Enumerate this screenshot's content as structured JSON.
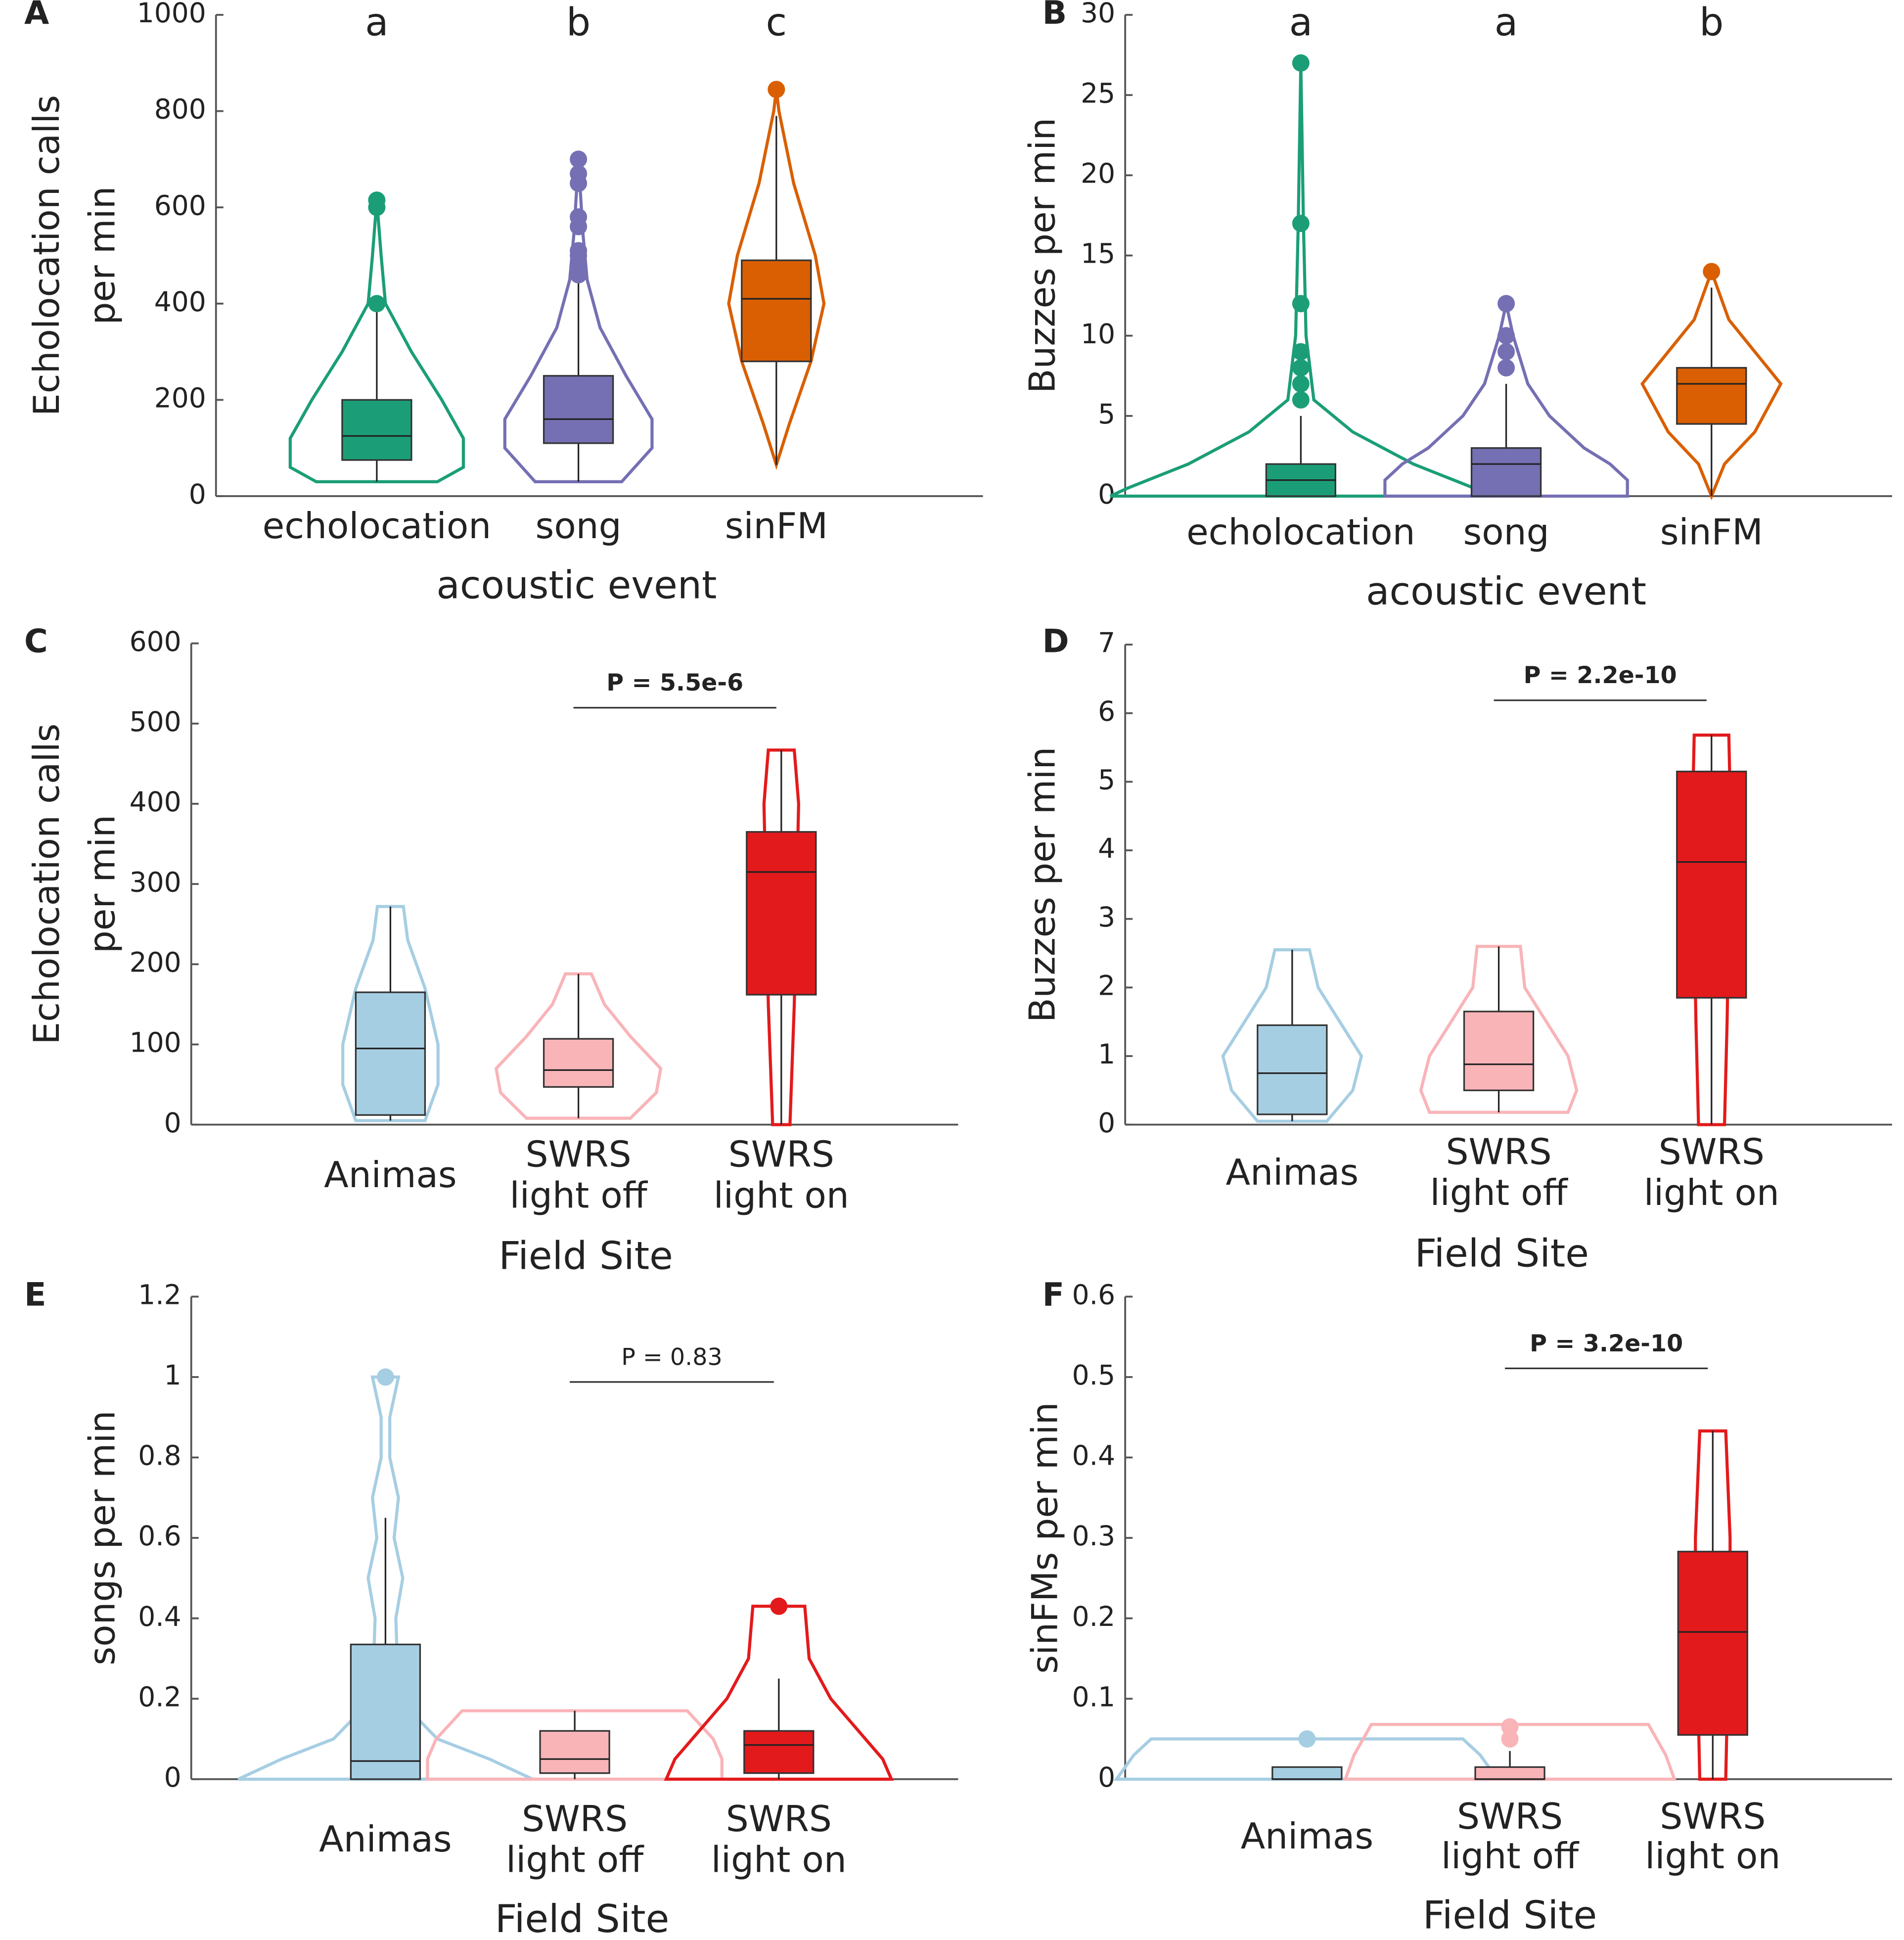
{
  "chart_data": [
    {
      "type": "violin",
      "panel": "A",
      "ylabel": [
        "Echolocation calls",
        "per min"
      ],
      "xlabel": "acoustic event",
      "ylim": [
        0,
        1000
      ],
      "yticks": [
        0,
        200,
        400,
        600,
        800,
        1000
      ],
      "letters": [
        "a",
        "b",
        "c"
      ],
      "groups": [
        {
          "label": [
            "echolocation"
          ],
          "color": "#1b9e77",
          "fill": "#1b9e77",
          "whisker_low": 30,
          "q1": 75,
          "median": 125,
          "q3": 200,
          "whisker_high": 395,
          "outliers": [
            400,
            600,
            615
          ],
          "violin": {
            "y": [
              30,
              60,
              120,
              200,
              300,
              400,
              500,
              615
            ],
            "density": [
              0.7,
              1.0,
              1.0,
              0.75,
              0.4,
              0.1,
              0.05,
              0
            ]
          }
        },
        {
          "label": [
            "song"
          ],
          "color": "#7570b3",
          "fill": "#7570b3",
          "whisker_low": 30,
          "q1": 110,
          "median": 160,
          "q3": 250,
          "whisker_high": 455,
          "outliers": [
            460,
            480,
            500,
            510,
            560,
            580,
            650,
            670,
            700
          ],
          "violin": {
            "y": [
              30,
              100,
              160,
              250,
              350,
              450,
              550,
              700
            ],
            "density": [
              0.5,
              0.85,
              0.85,
              0.55,
              0.25,
              0.1,
              0.05,
              0
            ]
          }
        },
        {
          "label": [
            "sinFM"
          ],
          "color": "#d95f02",
          "fill": "#d95f02",
          "whisker_low": 65,
          "q1": 280,
          "median": 410,
          "q3": 490,
          "whisker_high": 790,
          "outliers": [
            845
          ],
          "violin": {
            "y": [
              65,
              150,
              280,
              400,
              500,
              650,
              800,
              845
            ],
            "density": [
              0,
              0.15,
              0.4,
              0.55,
              0.45,
              0.2,
              0.03,
              0
            ]
          }
        }
      ]
    },
    {
      "type": "violin",
      "panel": "B",
      "ylabel": [
        "Buzzes per min"
      ],
      "xlabel": "acoustic event",
      "ylim": [
        0,
        30
      ],
      "yticks": [
        0,
        5,
        10,
        15,
        20,
        25,
        30
      ],
      "letters": [
        "a",
        "a",
        "b"
      ],
      "groups": [
        {
          "label": [
            "echolocation"
          ],
          "color": "#1b9e77",
          "fill": "#1b9e77",
          "whisker_low": 0,
          "q1": 0,
          "median": 1,
          "q3": 2,
          "whisker_high": 5,
          "outliers": [
            6,
            7,
            8,
            9,
            12,
            17,
            27
          ],
          "violin": {
            "y": [
              0,
              0.5,
              2,
              4,
              6,
              10,
              17,
              27
            ],
            "density": [
              2.2,
              2.0,
              1.3,
              0.6,
              0.15,
              0.06,
              0.03,
              0
            ]
          }
        },
        {
          "label": [
            "song"
          ],
          "color": "#7570b3",
          "fill": "#7570b3",
          "whisker_low": 0,
          "q1": 0,
          "median": 2,
          "q3": 3,
          "whisker_high": 7,
          "outliers": [
            8,
            9,
            10,
            12
          ],
          "violin": {
            "y": [
              0,
              1,
              2,
              3,
              5,
              7,
              10,
              12
            ],
            "density": [
              1.4,
              1.4,
              1.2,
              0.9,
              0.5,
              0.25,
              0.08,
              0
            ]
          }
        },
        {
          "label": [
            "sinFM"
          ],
          "color": "#d95f02",
          "fill": "#d95f02",
          "whisker_low": 0,
          "q1": 4.5,
          "median": 7,
          "q3": 8,
          "whisker_high": 13,
          "outliers": [
            14
          ],
          "violin": {
            "y": [
              0,
              2,
              4,
              7,
              9,
              11,
              14
            ],
            "density": [
              0,
              0.15,
              0.5,
              0.8,
              0.5,
              0.2,
              0
            ]
          }
        }
      ]
    },
    {
      "type": "violin",
      "panel": "C",
      "ylabel": [
        "Echolocation calls",
        "per min"
      ],
      "xlabel": "Field Site",
      "ylim": [
        0,
        600
      ],
      "yticks": [
        0,
        100,
        200,
        300,
        400,
        500,
        600
      ],
      "annotation": "P = 5.5e-6",
      "annotation_bold": true,
      "groups": [
        {
          "label": [
            "Animas"
          ],
          "color": "#a6cee3",
          "fill": "#a6cee3",
          "whisker_low": 5,
          "q1": 12,
          "median": 95,
          "q3": 165,
          "whisker_high": 272,
          "outliers": [],
          "violin": {
            "y": [
              5,
              50,
              100,
              170,
              230,
              272
            ],
            "density": [
              0.4,
              0.55,
              0.55,
              0.4,
              0.2,
              0.15
            ]
          }
        },
        {
          "label": [
            "SWRS",
            "light off"
          ],
          "color": "#f9b4b8",
          "fill": "#f9b4b8",
          "whisker_low": 8,
          "q1": 47,
          "median": 68,
          "q3": 107,
          "whisker_high": 188,
          "outliers": [],
          "violin": {
            "y": [
              8,
              40,
              70,
              110,
              150,
              188
            ],
            "density": [
              0.6,
              0.9,
              0.95,
              0.6,
              0.3,
              0.15
            ]
          }
        },
        {
          "label": [
            "SWRS",
            "light on"
          ],
          "color": "#e31a1c",
          "fill": "#e31a1c",
          "whisker_low": 0,
          "q1": 162,
          "median": 315,
          "q3": 365,
          "whisker_high": 467,
          "outliers": [],
          "violin": {
            "y": [
              0,
              150,
              300,
              400,
              467
            ],
            "density": [
              0.1,
              0.15,
              0.18,
              0.2,
              0.15
            ]
          }
        }
      ]
    },
    {
      "type": "violin",
      "panel": "D",
      "ylabel": [
        "Buzzes per min"
      ],
      "xlabel": "Field Site",
      "ylim": [
        0,
        7
      ],
      "yticks": [
        0,
        1,
        2,
        3,
        4,
        5,
        6,
        7
      ],
      "annotation": "P = 2.2e-10",
      "annotation_bold": true,
      "groups": [
        {
          "label": [
            "Animas"
          ],
          "color": "#a6cee3",
          "fill": "#a6cee3",
          "whisker_low": 0.05,
          "q1": 0.15,
          "median": 0.75,
          "q3": 1.45,
          "whisker_high": 2.55,
          "outliers": [],
          "violin": {
            "y": [
              0.05,
              0.5,
              1,
              1.5,
              2,
              2.55
            ],
            "density": [
              0.4,
              0.7,
              0.8,
              0.55,
              0.3,
              0.2
            ]
          }
        },
        {
          "label": [
            "SWRS",
            "light off"
          ],
          "color": "#f9b4b8",
          "fill": "#f9b4b8",
          "whisker_low": 0.18,
          "q1": 0.5,
          "median": 0.88,
          "q3": 1.65,
          "whisker_high": 2.6,
          "outliers": [],
          "violin": {
            "y": [
              0.18,
              0.5,
              1,
              1.5,
              2,
              2.6
            ],
            "density": [
              0.8,
              0.9,
              0.8,
              0.55,
              0.3,
              0.25
            ]
          }
        },
        {
          "label": [
            "SWRS",
            "light on"
          ],
          "color": "#e31a1c",
          "fill": "#e31a1c",
          "whisker_low": 0,
          "q1": 1.85,
          "median": 3.83,
          "q3": 5.15,
          "whisker_high": 5.68,
          "outliers": [],
          "violin": {
            "y": [
              0,
              1.5,
              3,
              4.5,
              5.68
            ],
            "density": [
              0.15,
              0.18,
              0.2,
              0.22,
              0.2
            ]
          }
        }
      ]
    },
    {
      "type": "violin",
      "panel": "E",
      "ylabel": [
        "songs per min"
      ],
      "xlabel": "Field Site",
      "ylim": [
        0,
        1.2
      ],
      "yticks": [
        0,
        0.2,
        0.4,
        0.6,
        0.8,
        1,
        1.2
      ],
      "annotation": "P = 0.83",
      "annotation_bold": false,
      "groups": [
        {
          "label": [
            "Animas"
          ],
          "color": "#a6cee3",
          "fill": "#a6cee3",
          "whisker_low": 0,
          "q1": 0,
          "median": 0.045,
          "q3": 0.335,
          "whisker_high": 0.65,
          "outliers": [
            1
          ],
          "violin": {
            "y": [
              0,
              0.05,
              0.1,
              0.2,
              0.4,
              0.5,
              0.6,
              0.7,
              0.8,
              0.9,
              1
            ],
            "density": [
              1.7,
              1.2,
              0.6,
              0.15,
              0.12,
              0.2,
              0.1,
              0.15,
              0.05,
              0.05,
              0.15
            ]
          }
        },
        {
          "label": [
            "SWRS",
            "light off"
          ],
          "color": "#f9b4b8",
          "fill": "#f9b4b8",
          "whisker_low": 0,
          "q1": 0.015,
          "median": 0.05,
          "q3": 0.12,
          "whisker_high": 0.17,
          "outliers": [],
          "violin": {
            "y": [
              0,
              0.05,
              0.1,
              0.17
            ],
            "density": [
              1.7,
              1.7,
              1.6,
              1.3
            ]
          }
        },
        {
          "label": [
            "SWRS",
            "light on"
          ],
          "color": "#e31a1c",
          "fill": "#e31a1c",
          "whisker_low": 0,
          "q1": 0.015,
          "median": 0.085,
          "q3": 0.12,
          "whisker_high": 0.25,
          "outliers": [
            0.43
          ],
          "violin": {
            "y": [
              0,
              0.05,
              0.1,
              0.2,
              0.3,
              0.43
            ],
            "density": [
              1.3,
              1.2,
              1.0,
              0.6,
              0.35,
              0.3
            ]
          }
        }
      ]
    },
    {
      "type": "violin",
      "panel": "F",
      "ylabel": [
        "sinFMs per min"
      ],
      "xlabel": "Field Site",
      "ylim": [
        0,
        0.6
      ],
      "yticks": [
        0,
        0.1,
        0.2,
        0.3,
        0.4,
        0.5,
        0.6
      ],
      "annotation": "P = 3.2e-10",
      "annotation_bold": true,
      "groups": [
        {
          "label": [
            "Animas"
          ],
          "color": "#a6cee3",
          "fill": "#a6cee3",
          "whisker_low": 0,
          "q1": 0,
          "median": 0,
          "q3": 0.015,
          "whisker_high": 0.015,
          "outliers": [
            0.05
          ],
          "violin": {
            "y": [
              0,
              0.03,
              0.05
            ],
            "density": [
              2.2,
              2.0,
              1.8
            ]
          }
        },
        {
          "label": [
            "SWRS",
            "light off"
          ],
          "color": "#f9b4b8",
          "fill": "#f9b4b8",
          "whisker_low": 0,
          "q1": 0,
          "median": 0,
          "q3": 0.015,
          "whisker_high": 0.035,
          "outliers": [
            0.05,
            0.065
          ],
          "violin": {
            "y": [
              0,
              0.03,
              0.068
            ],
            "density": [
              1.9,
              1.8,
              1.6
            ]
          }
        },
        {
          "label": [
            "SWRS",
            "light on"
          ],
          "color": "#e31a1c",
          "fill": "#e31a1c",
          "whisker_low": 0,
          "q1": 0.055,
          "median": 0.183,
          "q3": 0.283,
          "whisker_high": 0.433,
          "outliers": [],
          "violin": {
            "y": [
              0,
              0.1,
              0.2,
              0.3,
              0.433
            ],
            "density": [
              0.15,
              0.17,
              0.2,
              0.2,
              0.15
            ]
          }
        }
      ]
    }
  ]
}
